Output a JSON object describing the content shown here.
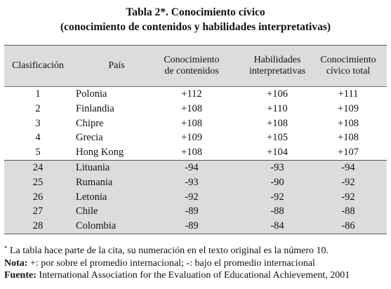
{
  "title": {
    "line1": "Tabla 2*. Conocimiento cívico",
    "line2": "(conocimiento de contenidos y habilidades interpretativas)"
  },
  "table": {
    "headers": {
      "rank": "Clasificación",
      "country": "País",
      "content": [
        "Conocimiento",
        "de contenidos"
      ],
      "skills": [
        "Habilidades",
        "interpretativas"
      ],
      "total": [
        "Conocimiento",
        "cívico total"
      ]
    },
    "top_rows": [
      {
        "rank": "1",
        "country": "Polonia",
        "content": "+112",
        "skills": "+106",
        "total": "+111"
      },
      {
        "rank": "2",
        "country": "Finlandia",
        "content": "+108",
        "skills": "+110",
        "total": "+109"
      },
      {
        "rank": "3",
        "country": "Chipre",
        "content": "+108",
        "skills": "+108",
        "total": "+108"
      },
      {
        "rank": "4",
        "country": "Grecia",
        "content": "+109",
        "skills": "+105",
        "total": "+108"
      },
      {
        "rank": "5",
        "country": "Hong Kong",
        "content": "+108",
        "skills": "+104",
        "total": "+107"
      }
    ],
    "bottom_rows": [
      {
        "rank": "24",
        "country": "Lituania",
        "content": "-94",
        "skills": "-93",
        "total": "-94"
      },
      {
        "rank": "25",
        "country": "Rumania",
        "content": "-93",
        "skills": "-90",
        "total": "-92"
      },
      {
        "rank": "26",
        "country": "Letonia",
        "content": "-92",
        "skills": "-92",
        "total": "-92"
      },
      {
        "rank": "27",
        "country": "Chile",
        "content": "-89",
        "skills": "-88",
        "total": "-88"
      },
      {
        "rank": "28",
        "country": "Colombia",
        "content": "-89",
        "skills": "-84",
        "total": "-86"
      }
    ]
  },
  "notes": {
    "footnote_mark": "*",
    "footnote_text": " La tabla hace parte de la cita, su numeración en el texto original es la número 10.",
    "nota_label": "Nota:",
    "nota_text": " +: por sobre el promedio internacional; -: bajo el promedio internacional",
    "fuente_label": "Fuente:",
    "fuente_text": " International Association for the Evaluation of Educational Achievement, 2001"
  },
  "colors": {
    "header_shade": "#dcdcdc",
    "bottom_shade": "#dcdcdc",
    "rule": "#555555"
  }
}
